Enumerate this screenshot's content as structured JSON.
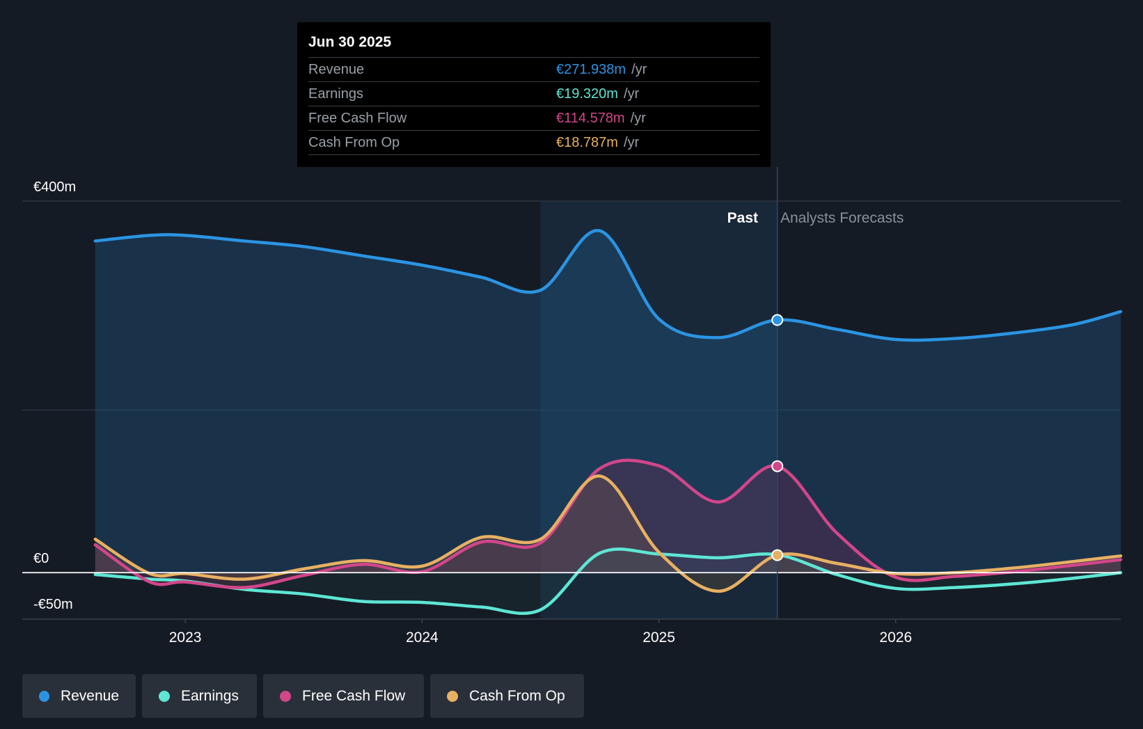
{
  "tooltip": {
    "date": "Jun 30 2025",
    "rows": [
      {
        "label": "Revenue",
        "value": "€271.938m",
        "unit": "/yr",
        "color": "#2b94e2"
      },
      {
        "label": "Earnings",
        "value": "€19.320m",
        "unit": "/yr",
        "color": "#5ee6d4"
      },
      {
        "label": "Free Cash Flow",
        "value": "€114.578m",
        "unit": "/yr",
        "color": "#d2468a"
      },
      {
        "label": "Cash From Op",
        "value": "€18.787m",
        "unit": "/yr",
        "color": "#e8b062"
      }
    ]
  },
  "chart_labels": {
    "past": "Past",
    "forecast": "Analysts Forecasts"
  },
  "legend": [
    {
      "label": "Revenue",
      "color": "#2b94e2"
    },
    {
      "label": "Earnings",
      "color": "#5ee6d4"
    },
    {
      "label": "Free Cash Flow",
      "color": "#d2468a"
    },
    {
      "label": "Cash From Op",
      "color": "#e8b062"
    }
  ],
  "chart_data": {
    "type": "line",
    "y_tick_labels": [
      "€400m",
      "€0",
      "-€50m"
    ],
    "ylim": [
      -50,
      400
    ],
    "xlim": [
      2022.5,
      2026.95
    ],
    "x_ticks": [
      2023,
      2024,
      2025,
      2026
    ],
    "x_tick_labels": [
      "2023",
      "2024",
      "2025",
      "2026"
    ],
    "past_region": [
      2024.5,
      2025.5
    ],
    "grid": true,
    "series": [
      {
        "name": "Revenue",
        "color": "#2b94e2",
        "x": [
          2022.62,
          2022.85,
          2023.0,
          2023.25,
          2023.5,
          2023.75,
          2024.0,
          2024.25,
          2024.5,
          2024.75,
          2025.0,
          2025.25,
          2025.5,
          2025.75,
          2026.0,
          2026.25,
          2026.5,
          2026.75,
          2026.95
        ],
        "y": [
          357,
          363,
          363,
          357,
          351,
          341,
          331,
          318,
          304,
          368,
          273,
          253,
          272,
          262,
          251,
          252,
          258,
          267,
          281
        ]
      },
      {
        "name": "Earnings",
        "color": "#5ee6d4",
        "x": [
          2022.62,
          2022.85,
          2023.0,
          2023.25,
          2023.5,
          2023.75,
          2024.0,
          2024.25,
          2024.5,
          2024.75,
          2025.0,
          2025.25,
          2025.5,
          2025.75,
          2026.0,
          2026.25,
          2026.5,
          2026.75,
          2026.95
        ],
        "y": [
          -2,
          -7,
          -9,
          -18,
          -23,
          -31,
          -32,
          -37,
          -40,
          21,
          20,
          16,
          19.3,
          -2,
          -17,
          -16,
          -12,
          -6,
          0
        ]
      },
      {
        "name": "Free Cash Flow",
        "color": "#d2468a",
        "x": [
          2022.62,
          2022.85,
          2023.0,
          2023.25,
          2023.5,
          2023.75,
          2024.0,
          2024.25,
          2024.5,
          2024.75,
          2025.0,
          2025.25,
          2025.5,
          2025.75,
          2026.0,
          2026.25,
          2026.5,
          2026.75,
          2026.95
        ],
        "y": [
          30,
          -10,
          -10,
          -16,
          -3,
          9,
          1,
          33,
          32,
          112,
          115,
          76,
          114.6,
          43,
          -5,
          -4,
          1,
          8,
          14
        ]
      },
      {
        "name": "Cash From Op",
        "color": "#e8b062",
        "x": [
          2022.62,
          2022.85,
          2023.0,
          2023.25,
          2023.5,
          2023.75,
          2024.0,
          2024.25,
          2024.5,
          2024.75,
          2025.0,
          2025.25,
          2025.5,
          2025.75,
          2026.0,
          2026.25,
          2026.5,
          2026.75,
          2026.95
        ],
        "y": [
          36,
          -1,
          -1,
          -7,
          4,
          13,
          7,
          38,
          36,
          104,
          22,
          -20,
          18.8,
          10,
          -1,
          0,
          5,
          12,
          18
        ]
      }
    ],
    "highlight_x": 2025.5,
    "highlight_points": [
      {
        "series": "Revenue",
        "y": 271.938
      },
      {
        "series": "Free Cash Flow",
        "y": 114.578
      },
      {
        "series": "Cash From Op",
        "y": 18.787
      }
    ]
  }
}
